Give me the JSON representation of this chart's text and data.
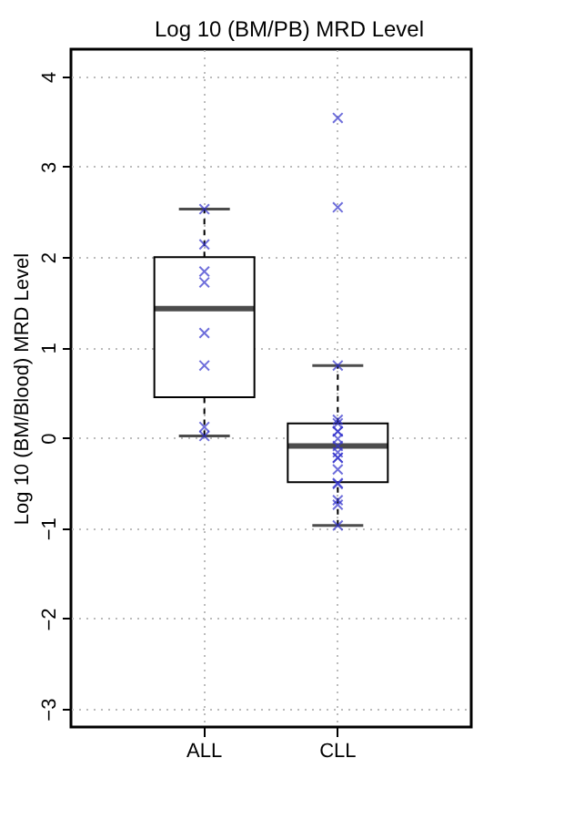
{
  "chart_data": {
    "type": "box",
    "title": "Log 10 (BM/PB) MRD Level",
    "ylabel": "Log 10 (BM/Blood) MRD Level",
    "categories": [
      "ALL",
      "CLL"
    ],
    "boxes": [
      {
        "low": 0.02,
        "q1": 0.45,
        "median": 1.43,
        "q3": 2.0,
        "high": 2.53
      },
      {
        "low": -0.97,
        "q1": -0.49,
        "median": -0.09,
        "q3": 0.16,
        "high": 0.8,
        "outliers": [
          3.54,
          2.55
        ]
      }
    ],
    "series": [
      {
        "type": "scatter",
        "color": "#3333cc",
        "marker": "cross",
        "x": [
          "ALL",
          "ALL",
          "ALL",
          "ALL",
          "ALL",
          "ALL",
          "ALL",
          "ALL",
          "CLL",
          "CLL",
          "CLL",
          "CLL",
          "CLL",
          "CLL",
          "CLL",
          "CLL",
          "CLL",
          "CLL",
          "CLL",
          "CLL",
          "CLL",
          "CLL",
          "CLL",
          "CLL"
        ],
        "values": [
          2.53,
          2.14,
          1.84,
          1.72,
          1.16,
          0.8,
          0.12,
          0.02,
          0.8,
          0.2,
          0.16,
          0.07,
          0.07,
          -0.01,
          -0.09,
          -0.16,
          -0.22,
          -0.22,
          -0.35,
          -0.5,
          -0.51,
          -0.69,
          -0.74,
          -0.97
        ]
      }
    ],
    "ylim": [
      -3.2,
      4.3
    ],
    "yticks": [
      -3,
      -2,
      -1,
      0,
      1,
      2,
      3,
      4
    ],
    "grid": true
  }
}
